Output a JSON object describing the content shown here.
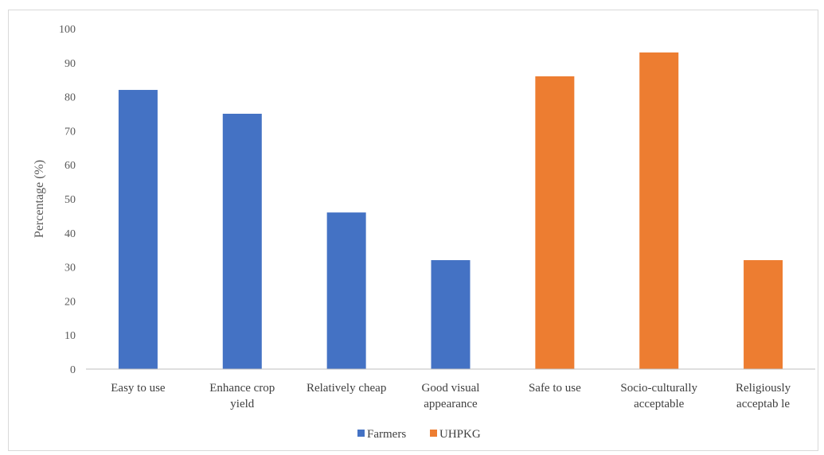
{
  "chart_data": {
    "type": "bar",
    "title": "",
    "xlabel": "",
    "ylabel": "Percentage (%)",
    "ylim": [
      0,
      100
    ],
    "yticks": [
      0,
      10,
      20,
      30,
      40,
      50,
      60,
      70,
      80,
      90,
      100
    ],
    "grid": false,
    "legend_position": "bottom",
    "categories": [
      [
        "Easy to use"
      ],
      [
        "Enhance crop",
        "yield"
      ],
      [
        "Relatively cheap"
      ],
      [
        "Good visual",
        "appearance"
      ],
      [
        "Safe to use"
      ],
      [
        "Socio-culturally",
        "acceptable"
      ],
      [
        "Religiously",
        "acceptab le"
      ]
    ],
    "series": [
      {
        "name": "Farmers",
        "color": "#4472c4",
        "values": [
          82,
          75,
          46,
          32,
          null,
          null,
          null
        ]
      },
      {
        "name": "UHPKG",
        "color": "#ed7d31",
        "values": [
          null,
          null,
          null,
          null,
          86,
          93,
          32
        ]
      }
    ]
  }
}
